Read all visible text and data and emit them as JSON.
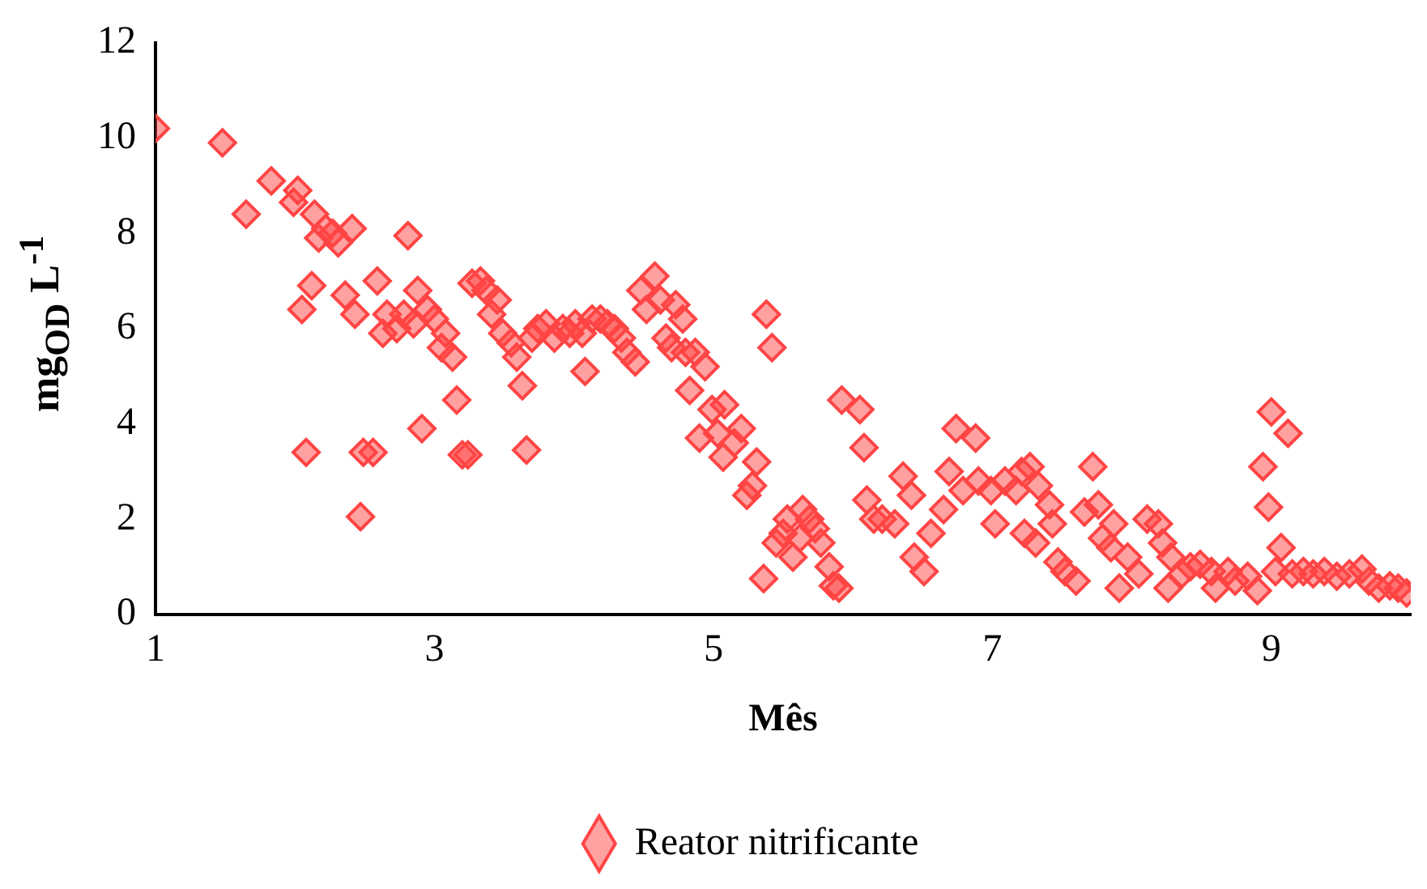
{
  "chart_data": {
    "type": "scatter",
    "xlabel": "Mês",
    "ylabel": "mg$_{OD}$ L$^{-1}$",
    "xlim": [
      1,
      10
    ],
    "xticks": [
      1,
      3,
      5,
      7,
      9
    ],
    "ylim": [
      0,
      12
    ],
    "yticks": [
      0,
      2,
      4,
      6,
      8,
      10,
      12
    ],
    "grid": false,
    "legend": "bottom",
    "marker": "diamond",
    "series": [
      {
        "name": "Reator nitrificante",
        "color": "#ff4444",
        "x": [
          1.0,
          1.48,
          1.65,
          1.83,
          1.99,
          2.02,
          2.05,
          2.08,
          2.12,
          2.14,
          2.17,
          2.22,
          2.27,
          2.31,
          2.36,
          2.41,
          2.43,
          2.47,
          2.49,
          2.56,
          2.59,
          2.63,
          2.66,
          2.73,
          2.78,
          2.81,
          2.85,
          2.88,
          2.91,
          2.95,
          3.0,
          3.05,
          3.08,
          3.13,
          3.16,
          3.2,
          3.24,
          3.27,
          3.33,
          3.37,
          3.41,
          3.45,
          3.49,
          3.55,
          3.59,
          3.63,
          3.66,
          3.7,
          3.74,
          3.8,
          3.86,
          3.92,
          3.97,
          4.01,
          4.06,
          4.08,
          4.13,
          4.19,
          4.24,
          4.29,
          4.34,
          4.38,
          4.44,
          4.48,
          4.52,
          4.58,
          4.62,
          4.66,
          4.7,
          4.73,
          4.78,
          4.8,
          4.83,
          4.87,
          4.9,
          4.94,
          4.99,
          5.03,
          5.07,
          5.08,
          5.15,
          5.2,
          5.24,
          5.28,
          5.31,
          5.36,
          5.38,
          5.42,
          5.45,
          5.5,
          5.53,
          5.57,
          5.62,
          5.64,
          5.69,
          5.73,
          5.77,
          5.83,
          5.86,
          5.9,
          5.92,
          6.05,
          6.08,
          6.1,
          6.15,
          6.21,
          6.3,
          6.36,
          6.42,
          6.44,
          6.51,
          6.56,
          6.65,
          6.69,
          6.74,
          6.79,
          6.88,
          6.9,
          6.99,
          7.02,
          7.09,
          7.17,
          7.21,
          7.23,
          7.27,
          7.31,
          7.33,
          7.41,
          7.43,
          7.47,
          7.52,
          7.6,
          7.66,
          7.72,
          7.76,
          7.79,
          7.85,
          7.87,
          7.91,
          7.97,
          8.05,
          8.11,
          8.19,
          8.22,
          8.26,
          8.28,
          8.36,
          8.42,
          8.49,
          8.57,
          8.6,
          8.69,
          8.74,
          8.83,
          8.9,
          8.94,
          8.98,
          9.0,
          9.03,
          9.07,
          9.12,
          9.15,
          9.23,
          9.3,
          9.38,
          9.47,
          9.56,
          9.65,
          9.7,
          9.77,
          9.85,
          9.91,
          9.97
        ],
        "values": [
          10.2,
          9.9,
          8.4,
          9.1,
          8.65,
          8.9,
          6.4,
          3.4,
          6.9,
          8.4,
          7.9,
          8.1,
          8.0,
          7.8,
          6.7,
          8.1,
          6.3,
          2.05,
          3.4,
          3.4,
          7.0,
          5.9,
          6.3,
          6.0,
          6.3,
          7.95,
          6.1,
          6.8,
          3.9,
          6.4,
          6.2,
          5.6,
          5.9,
          5.4,
          4.5,
          3.35,
          3.35,
          6.95,
          7.0,
          6.8,
          6.3,
          6.6,
          5.9,
          5.7,
          5.4,
          4.8,
          3.45,
          5.8,
          6.0,
          6.1,
          5.8,
          6.0,
          5.9,
          6.1,
          5.9,
          5.1,
          6.2,
          6.2,
          6.1,
          6.0,
          5.8,
          5.5,
          5.3,
          6.8,
          6.4,
          7.1,
          6.6,
          5.8,
          5.6,
          6.5,
          6.2,
          5.5,
          4.7,
          5.5,
          3.7,
          5.2,
          4.3,
          3.8,
          3.3,
          4.4,
          3.6,
          3.9,
          2.5,
          2.7,
          3.2,
          0.75,
          6.3,
          5.6,
          1.5,
          1.7,
          2.0,
          1.2,
          1.6,
          2.2,
          2.0,
          1.8,
          1.5,
          1.0,
          0.6,
          0.55,
          4.5,
          4.3,
          3.5,
          2.4,
          2.0,
          2.0,
          1.9,
          2.9,
          2.5,
          1.2,
          0.9,
          1.7,
          2.2,
          3.0,
          3.9,
          2.6,
          3.7,
          2.8,
          2.6,
          1.9,
          2.8,
          2.6,
          3.0,
          1.7,
          3.1,
          1.5,
          2.7,
          2.3,
          1.9,
          1.1,
          0.9,
          0.7,
          2.15,
          3.1,
          2.3,
          1.6,
          1.4,
          1.9,
          0.55,
          1.2,
          0.85,
          2.0,
          1.9,
          1.5,
          0.55,
          1.2,
          0.85,
          1.0,
          1.05,
          0.9,
          0.55,
          0.9,
          0.7,
          0.8,
          0.5,
          3.1,
          2.25,
          4.25,
          0.9,
          1.4,
          3.8,
          0.85,
          0.9,
          0.85,
          0.9,
          0.8,
          0.85,
          0.95,
          0.7,
          0.55,
          0.6,
          0.55,
          0.45
        ]
      }
    ]
  }
}
